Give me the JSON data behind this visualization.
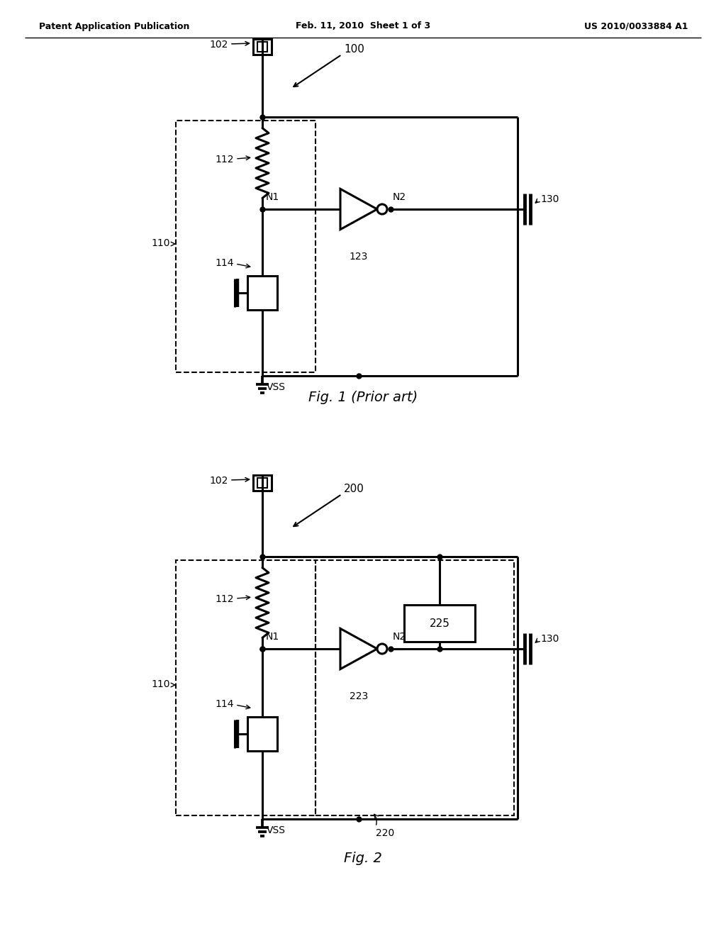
{
  "bg_color": "#ffffff",
  "line_color": "#000000",
  "lw": 2.2,
  "dlw": 1.5,
  "header_left": "Patent Application Publication",
  "header_center": "Feb. 11, 2010  Sheet 1 of 3",
  "header_right": "US 2010/0033884 A1",
  "fig1_caption": "Fig. 1 (Prior art)",
  "fig2_caption": "Fig. 2"
}
